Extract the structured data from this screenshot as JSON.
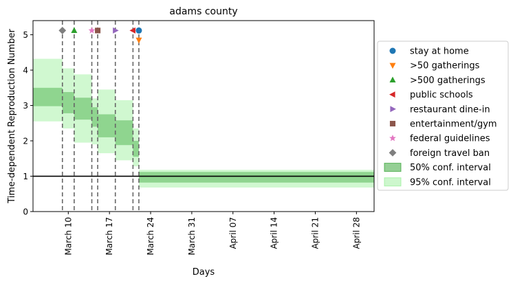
{
  "chart_data": {
    "type": "step-area",
    "title": "adams county",
    "xlabel": "Days",
    "ylabel": "Time-dependent Reproduction Number",
    "x_axis": {
      "type": "date",
      "range": [
        "2020-03-04",
        "2020-05-01"
      ],
      "tick_dates": [
        "2020-03-10",
        "2020-03-17",
        "2020-03-24",
        "2020-03-31",
        "2020-04-07",
        "2020-04-14",
        "2020-04-21",
        "2020-04-28"
      ],
      "tick_labels": [
        "March 10",
        "March 17",
        "March 24",
        "March 31",
        "April 07",
        "April 14",
        "April 21",
        "April 28"
      ]
    },
    "y_axis": {
      "range": [
        0,
        5.4
      ],
      "ticks": [
        0,
        1,
        2,
        3,
        4,
        5
      ],
      "tick_labels": [
        "0",
        "1",
        "2",
        "3",
        "4",
        "5"
      ]
    },
    "grid": false,
    "reference_line_y": 1,
    "segments": [
      {
        "start": "2020-03-04",
        "end": "2020-03-09",
        "ci50": [
          2.98,
          3.5
        ],
        "ci95": [
          2.55,
          4.32
        ]
      },
      {
        "start": "2020-03-09",
        "end": "2020-03-11",
        "ci50": [
          2.78,
          3.38
        ],
        "ci95": [
          2.35,
          4.05
        ]
      },
      {
        "start": "2020-03-11",
        "end": "2020-03-14",
        "ci50": [
          2.6,
          3.22
        ],
        "ci95": [
          1.95,
          3.88
        ]
      },
      {
        "start": "2020-03-14",
        "end": "2020-03-15",
        "ci50": [
          2.4,
          2.95
        ],
        "ci95": [
          1.9,
          3.2
        ]
      },
      {
        "start": "2020-03-15",
        "end": "2020-03-18",
        "ci50": [
          2.1,
          2.75
        ],
        "ci95": [
          1.65,
          3.45
        ]
      },
      {
        "start": "2020-03-18",
        "end": "2020-03-21",
        "ci50": [
          1.88,
          2.58
        ],
        "ci95": [
          1.45,
          3.15
        ]
      },
      {
        "start": "2020-03-21",
        "end": "2020-03-22",
        "ci50": [
          1.55,
          2.0
        ],
        "ci95": [
          1.28,
          2.35
        ]
      },
      {
        "start": "2020-03-22",
        "end": "2020-05-01",
        "ci50": [
          0.82,
          1.12
        ],
        "ci95": [
          0.68,
          1.18
        ]
      }
    ],
    "interventions": [
      {
        "name": "stay at home",
        "date": "2020-03-22",
        "y": 5.12,
        "marker": "circle",
        "color": "#1f77b4"
      },
      {
        "name": ">50 gatherings",
        "date": "2020-03-22",
        "y": 4.85,
        "marker": "triangle-down",
        "color": "#ff7f0e"
      },
      {
        "name": ">500 gatherings",
        "date": "2020-03-11",
        "y": 5.12,
        "marker": "triangle-up",
        "color": "#2ca02c"
      },
      {
        "name": "public schools",
        "date": "2020-03-21",
        "y": 5.12,
        "marker": "triangle-left",
        "color": "#d62728"
      },
      {
        "name": "restaurant dine-in",
        "date": "2020-03-18",
        "y": 5.12,
        "marker": "triangle-right",
        "color": "#9467bd"
      },
      {
        "name": "entertainment/gym",
        "date": "2020-03-15",
        "y": 5.12,
        "marker": "square",
        "color": "#8c564b"
      },
      {
        "name": "federal guidelines",
        "date": "2020-03-14",
        "y": 5.12,
        "marker": "star",
        "color": "#e377c2"
      },
      {
        "name": "foreign travel ban",
        "date": "2020-03-09",
        "y": 5.12,
        "marker": "diamond",
        "color": "#7f7f7f"
      }
    ],
    "legend": {
      "placement": "right",
      "entries": [
        {
          "label": "stay at home",
          "kind": "circle",
          "color": "#1f77b4"
        },
        {
          "label": ">50 gatherings",
          "kind": "triangle-down",
          "color": "#ff7f0e"
        },
        {
          "label": ">500 gatherings",
          "kind": "triangle-up",
          "color": "#2ca02c"
        },
        {
          "label": "public schools",
          "kind": "triangle-left",
          "color": "#d62728"
        },
        {
          "label": "restaurant dine-in",
          "kind": "triangle-right",
          "color": "#9467bd"
        },
        {
          "label": "entertainment/gym",
          "kind": "square",
          "color": "#8c564b"
        },
        {
          "label": "federal guidelines",
          "kind": "star",
          "color": "#e377c2"
        },
        {
          "label": "foreign travel ban",
          "kind": "diamond",
          "color": "#7f7f7f"
        },
        {
          "label": "50% conf. interval",
          "kind": "patch",
          "color": "#2ca02c"
        },
        {
          "label": "95% conf. interval",
          "kind": "patch",
          "color": "#90ee90"
        }
      ]
    },
    "colors": {
      "ci50_fill": "#2ca02c",
      "ci95_fill": "#90ee90",
      "vline": "#666666",
      "hline": "#000000"
    }
  }
}
